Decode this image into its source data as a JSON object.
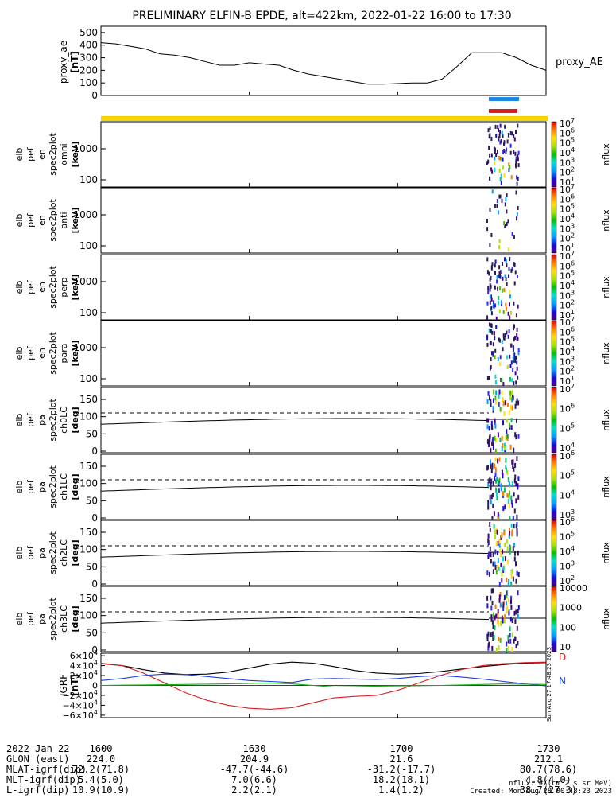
{
  "title": "PRELIMINARY ELFIN-B EPDE, alt=422km, 2022-01-22 16:00 to 17:30",
  "colors": {
    "yellow": "#f4d400",
    "blue_bar": "#1e88e5",
    "red_bar": "#e01e1e",
    "line_black": "#000000",
    "line_red": "#d81e1e",
    "line_blue": "#1e3ce0",
    "line_green": "#16b016"
  },
  "x_axis": {
    "ticks": [
      "1600",
      "1630",
      "1700",
      "1730"
    ]
  },
  "chart_data": [
    {
      "type": "line",
      "id": "proxy_ae",
      "ylabel": [
        "proxy_ae",
        "[nT]"
      ],
      "series": [
        {
          "name": "proxy_AE",
          "x": [
            1600,
            1603,
            1606,
            1609,
            1612,
            1615,
            1618,
            1621,
            1624,
            1627,
            1630,
            1633,
            1636,
            1639,
            1642,
            1645,
            1648,
            1651,
            1654,
            1657,
            1700,
            1703,
            1706,
            1709,
            1712,
            1715,
            1718,
            1721,
            1724,
            1727,
            1730
          ],
          "values": [
            420,
            410,
            390,
            370,
            330,
            320,
            300,
            270,
            240,
            240,
            260,
            250,
            240,
            200,
            170,
            150,
            130,
            110,
            90,
            90,
            95,
            100,
            100,
            130,
            230,
            340,
            340,
            340,
            300,
            240,
            200
          ]
        }
      ],
      "yticks": [
        "500",
        "400",
        "300",
        "200",
        "100",
        "0"
      ],
      "ylim": [
        0,
        550
      ]
    },
    {
      "type": "heatmap",
      "id": "omni",
      "ylabel": [
        "elb",
        "pef",
        "en",
        "spec2plot",
        "omni",
        "[keV]"
      ],
      "yticks": [
        "1000",
        "100"
      ],
      "colorbar": {
        "label": "nflux",
        "ticks": [
          "10",
          "10",
          "10",
          "10",
          "10",
          "10",
          "10"
        ],
        "exponents": [
          "7",
          "6",
          "5",
          "4",
          "3",
          "2",
          "1"
        ]
      }
    },
    {
      "type": "heatmap",
      "id": "anti",
      "ylabel": [
        "elb",
        "pef",
        "en",
        "spec2plot",
        "anti",
        "[keV]"
      ],
      "yticks": [
        "1000",
        "100"
      ],
      "colorbar": {
        "label": "nflux",
        "ticks": [
          "10",
          "10",
          "10",
          "10",
          "10",
          "10",
          "10"
        ],
        "exponents": [
          "7",
          "6",
          "5",
          "4",
          "3",
          "2",
          "1"
        ]
      }
    },
    {
      "type": "heatmap",
      "id": "perp",
      "ylabel": [
        "elb",
        "pef",
        "en",
        "spec2plot",
        "perp",
        "[keV]"
      ],
      "yticks": [
        "1000",
        "100"
      ],
      "colorbar": {
        "label": "nflux",
        "ticks": [
          "10",
          "10",
          "10",
          "10",
          "10",
          "10",
          "10"
        ],
        "exponents": [
          "7",
          "6",
          "5",
          "4",
          "3",
          "2",
          "1"
        ]
      }
    },
    {
      "type": "heatmap",
      "id": "para",
      "ylabel": [
        "elb",
        "pef",
        "en",
        "spec2plot",
        "para",
        "[keV]"
      ],
      "yticks": [
        "1000",
        "100"
      ],
      "colorbar": {
        "label": "nflux",
        "ticks": [
          "10",
          "10",
          "10",
          "10",
          "10",
          "10",
          "10"
        ],
        "exponents": [
          "7",
          "6",
          "5",
          "4",
          "3",
          "2",
          "1"
        ]
      }
    },
    {
      "type": "heatmap",
      "id": "ch0LC",
      "ylabel": [
        "elb",
        "pef",
        "pa",
        "spec2plot",
        "ch0LC",
        "[deg]"
      ],
      "yticks": [
        "150",
        "100",
        "50",
        "0"
      ],
      "colorbar": {
        "label": "nflux",
        "ticks": [
          "10",
          "10",
          "10",
          "10"
        ],
        "exponents": [
          "7",
          "6",
          "5",
          "4"
        ]
      }
    },
    {
      "type": "heatmap",
      "id": "ch1LC",
      "ylabel": [
        "elb",
        "pef",
        "pa",
        "spec2plot",
        "ch1LC",
        "[deg]"
      ],
      "yticks": [
        "150",
        "100",
        "50",
        "0"
      ],
      "colorbar": {
        "label": "nflux",
        "ticks": [
          "10",
          "10",
          "10",
          "10"
        ],
        "exponents": [
          "6",
          "5",
          "4",
          "3"
        ]
      }
    },
    {
      "type": "heatmap",
      "id": "ch2LC",
      "ylabel": [
        "elb",
        "pef",
        "pa",
        "spec2plot",
        "ch2LC",
        "[deg]"
      ],
      "yticks": [
        "150",
        "100",
        "50",
        "0"
      ],
      "colorbar": {
        "label": "nflux",
        "ticks": [
          "10",
          "10",
          "10",
          "10",
          "10"
        ],
        "exponents": [
          "6",
          "5",
          "4",
          "3",
          "2"
        ]
      }
    },
    {
      "type": "heatmap",
      "id": "ch3LC",
      "ylabel": [
        "elb",
        "pef",
        "pa",
        "spec2plot",
        "ch3LC",
        "[deg]"
      ],
      "yticks": [
        "150",
        "100",
        "50",
        "0"
      ],
      "colorbar": {
        "label": "nflux",
        "ticks": [
          "10000",
          "1000",
          "100",
          "10"
        ],
        "exponents": []
      }
    },
    {
      "type": "line",
      "id": "igrf",
      "ylabel": [
        "IGRF",
        "[nT]"
      ],
      "yticks": [
        "6×10",
        "4×10",
        "2×10",
        "0",
        "−2×10",
        "−4×10",
        "−6×10"
      ],
      "ytick_exp": "4",
      "series_labels": [
        "D",
        "N"
      ],
      "series": [
        {
          "color": "black",
          "values": [
            44000,
            40000,
            32000,
            25000,
            22000,
            23000,
            27000,
            35000,
            43000,
            47000,
            45000,
            38000,
            30000,
            25000,
            23000,
            24000,
            28000,
            33000,
            38000,
            42000,
            45000,
            46000
          ]
        },
        {
          "color": "red",
          "values": [
            45000,
            40000,
            25000,
            5000,
            -15000,
            -30000,
            -40000,
            -46000,
            -48000,
            -45000,
            -35000,
            -25000,
            -22000,
            -20000,
            -10000,
            5000,
            20000,
            32000,
            40000,
            44000,
            46000,
            47000
          ]
        },
        {
          "color": "blue",
          "values": [
            10000,
            14000,
            20000,
            23000,
            22000,
            18000,
            14000,
            10000,
            8000,
            6000,
            13000,
            14000,
            13000,
            12000,
            14000,
            18000,
            20000,
            17000,
            13000,
            8000,
            3000,
            -1000
          ]
        },
        {
          "color": "green",
          "values": [
            0,
            500,
            1000,
            1500,
            2000,
            2500,
            3000,
            4000,
            5000,
            3000,
            0,
            -3000,
            -2500,
            -1500,
            -1000,
            -500,
            0,
            1000,
            2000,
            3000,
            2500,
            2000
          ]
        }
      ],
      "ylim": [
        -65000,
        65000
      ]
    }
  ],
  "footer": {
    "rows": [
      {
        "label": "2022 Jan 22",
        "values": [
          "1600",
          "1630",
          "1700",
          "1730"
        ]
      },
      {
        "label": "GLON (east)",
        "values": [
          "224.0",
          "204.9",
          "21.6",
          "212.1"
        ]
      },
      {
        "label": "MLAT-igrf(dip)",
        "values": [
          "72.2(71.8)",
          "-47.7(-44.6)",
          "-31.2(-17.7)",
          "80.7(78.6)"
        ]
      },
      {
        "label": "MLT-igrf(dip)",
        "values": [
          "5.4(5.0)",
          "7.0(6.6)",
          "18.2(18.1)",
          "4.8(4.0)"
        ]
      },
      {
        "label": "L-igrf(dip)",
        "values": [
          "10.9(10.9)",
          "2.2(2.1)",
          "1.4(1.2)",
          "38.7(27.3)"
        ]
      }
    ],
    "units": "nflux: #/(cm^2 s sr MeV)",
    "created": "Created: Mon Aug 28 00:48:23 2023",
    "side_stamp": "Sun Aug 27 17:48:23 2023"
  }
}
